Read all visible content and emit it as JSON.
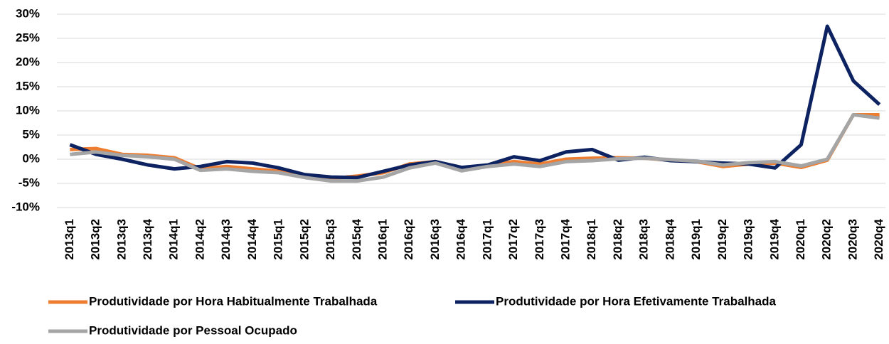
{
  "chart_data": {
    "type": "line",
    "categories": [
      "2013q1",
      "2013q2",
      "2013q3",
      "2013q4",
      "2014q1",
      "2014q2",
      "2014q3",
      "2014q4",
      "2015q1",
      "2015q2",
      "2015q3",
      "2015q4",
      "2016q1",
      "2016q2",
      "2016q3",
      "2016q4",
      "2017q1",
      "2017q2",
      "2017q3",
      "2017q4",
      "2018q1",
      "2018q2",
      "2018q3",
      "2018q4",
      "2019q1",
      "2019q2",
      "2019q3",
      "2019q4",
      "2020q1",
      "2020q2",
      "2020q3",
      "2020q4"
    ],
    "series": [
      {
        "name": "Produtividade por Hora Habitualmente Trabalhada",
        "color": "#ed7d31",
        "values": [
          2,
          2.2,
          1,
          0.8,
          0.3,
          -2,
          -1.5,
          -2,
          -2.5,
          -3.5,
          -4,
          -3.5,
          -2.8,
          -1,
          -0.5,
          -2.2,
          -1.2,
          -0.5,
          -1,
          0,
          0.2,
          0.3,
          0.2,
          -0.2,
          -0.5,
          -1.5,
          -1,
          -0.8,
          -1.7,
          -0.2,
          9.2,
          9.2
        ]
      },
      {
        "name": "Produtividade por Hora Efetivamente Trabalhada",
        "color": "#0d2260",
        "values": [
          3,
          1,
          0,
          -1.2,
          -2,
          -1.5,
          -0.5,
          -0.8,
          -1.8,
          -3.2,
          -3.7,
          -3.8,
          -2.5,
          -1.2,
          -0.5,
          -1.7,
          -1.2,
          0.5,
          -0.3,
          1.5,
          2,
          -0.2,
          0.4,
          -0.3,
          -0.5,
          -0.8,
          -1,
          -1.8,
          3,
          27.5,
          16.2,
          11.3
        ]
      },
      {
        "name": "Produtividade por Pessoal Ocupado",
        "color": "#a5a5a5",
        "values": [
          1,
          1.5,
          0.8,
          0.5,
          0,
          -2.3,
          -2,
          -2.5,
          -2.8,
          -3.8,
          -4.5,
          -4.5,
          -3.7,
          -1.8,
          -0.8,
          -2.4,
          -1.5,
          -1,
          -1.5,
          -0.5,
          -0.3,
          0.1,
          0.2,
          -0.1,
          -0.4,
          -1.2,
          -0.7,
          -0.5,
          -1.4,
          0,
          9.2,
          8.5
        ]
      }
    ],
    "ylim": [
      -10,
      30
    ],
    "yticks": [
      {
        "value": -10,
        "label": "-10%"
      },
      {
        "value": -5,
        "label": "-5%"
      },
      {
        "value": 0,
        "label": "0%"
      },
      {
        "value": 5,
        "label": "5%"
      },
      {
        "value": 10,
        "label": "10%"
      },
      {
        "value": 15,
        "label": "15%"
      },
      {
        "value": 20,
        "label": "20%"
      },
      {
        "value": 25,
        "label": "25%"
      },
      {
        "value": 30,
        "label": "30%"
      }
    ],
    "grid": true
  }
}
